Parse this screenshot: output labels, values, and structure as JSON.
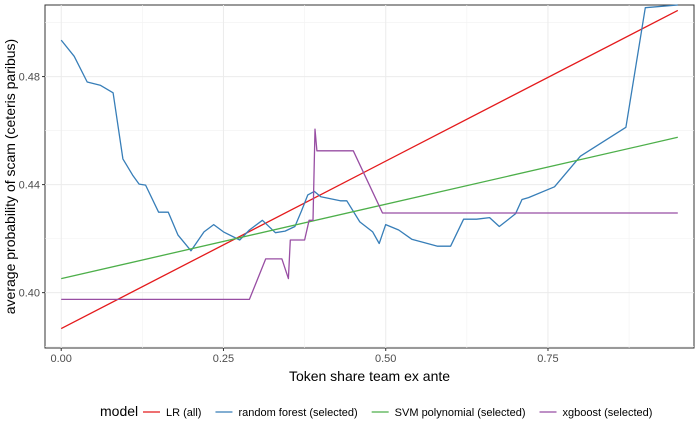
{
  "chart_data": {
    "type": "line",
    "xlabel": "Token share team ex ante",
    "ylabel": "average probability of scam (ceteris paribus)",
    "xlim": [
      -0.025,
      0.975
    ],
    "ylim": [
      0.3795,
      0.5065
    ],
    "x_ticks": [
      0.0,
      0.25,
      0.5,
      0.75
    ],
    "x_tick_labels": [
      "0.00",
      "0.25",
      "0.50",
      "0.75"
    ],
    "y_ticks": [
      0.4,
      0.44,
      0.48
    ],
    "y_tick_labels": [
      "0.40",
      "0.44",
      "0.48"
    ],
    "grid": true,
    "legend": {
      "title": "model",
      "position": "bottom"
    },
    "series": [
      {
        "name": "LR (all)",
        "color": "#e41a1c",
        "points": [
          [
            0.0,
            0.3867
          ],
          [
            0.95,
            0.5045
          ]
        ]
      },
      {
        "name": "random forest (selected)",
        "color": "#377eb8",
        "points": [
          [
            0.0,
            0.4935
          ],
          [
            0.02,
            0.4875
          ],
          [
            0.04,
            0.478
          ],
          [
            0.06,
            0.4768
          ],
          [
            0.08,
            0.474
          ],
          [
            0.095,
            0.4495
          ],
          [
            0.11,
            0.4435
          ],
          [
            0.12,
            0.4402
          ],
          [
            0.13,
            0.4398
          ],
          [
            0.15,
            0.4298
          ],
          [
            0.165,
            0.4298
          ],
          [
            0.18,
            0.4213
          ],
          [
            0.2,
            0.4155
          ],
          [
            0.22,
            0.4225
          ],
          [
            0.235,
            0.4252
          ],
          [
            0.25,
            0.4225
          ],
          [
            0.275,
            0.4195
          ],
          [
            0.29,
            0.4232
          ],
          [
            0.31,
            0.4268
          ],
          [
            0.33,
            0.4222
          ],
          [
            0.345,
            0.4228
          ],
          [
            0.36,
            0.4245
          ],
          [
            0.37,
            0.4302
          ],
          [
            0.38,
            0.4362
          ],
          [
            0.39,
            0.4375
          ],
          [
            0.4,
            0.4355
          ],
          [
            0.43,
            0.434
          ],
          [
            0.44,
            0.434
          ],
          [
            0.46,
            0.4262
          ],
          [
            0.48,
            0.4225
          ],
          [
            0.49,
            0.4182
          ],
          [
            0.5,
            0.4252
          ],
          [
            0.52,
            0.4232
          ],
          [
            0.54,
            0.4198
          ],
          [
            0.56,
            0.4185
          ],
          [
            0.58,
            0.4172
          ],
          [
            0.6,
            0.4172
          ],
          [
            0.62,
            0.4272
          ],
          [
            0.64,
            0.4272
          ],
          [
            0.66,
            0.4278
          ],
          [
            0.675,
            0.4245
          ],
          [
            0.7,
            0.4292
          ],
          [
            0.71,
            0.4345
          ],
          [
            0.72,
            0.4352
          ],
          [
            0.76,
            0.4392
          ],
          [
            0.8,
            0.4505
          ],
          [
            0.87,
            0.4612
          ],
          [
            0.9,
            0.5055
          ],
          [
            0.95,
            0.5065
          ]
        ]
      },
      {
        "name": "SVM polynomial (selected)",
        "color": "#4daf4a",
        "points": [
          [
            0.0,
            0.4052
          ],
          [
            0.95,
            0.4575
          ]
        ]
      },
      {
        "name": "xgboost (selected)",
        "color": "#984ea3",
        "points": [
          [
            0.0,
            0.3975
          ],
          [
            0.29,
            0.3975
          ],
          [
            0.315,
            0.4125
          ],
          [
            0.34,
            0.4125
          ],
          [
            0.35,
            0.4052
          ],
          [
            0.353,
            0.4195
          ],
          [
            0.375,
            0.4195
          ],
          [
            0.382,
            0.4268
          ],
          [
            0.388,
            0.4268
          ],
          [
            0.391,
            0.4605
          ],
          [
            0.394,
            0.4525
          ],
          [
            0.45,
            0.4525
          ],
          [
            0.495,
            0.4295
          ],
          [
            0.95,
            0.4295
          ]
        ]
      }
    ]
  }
}
